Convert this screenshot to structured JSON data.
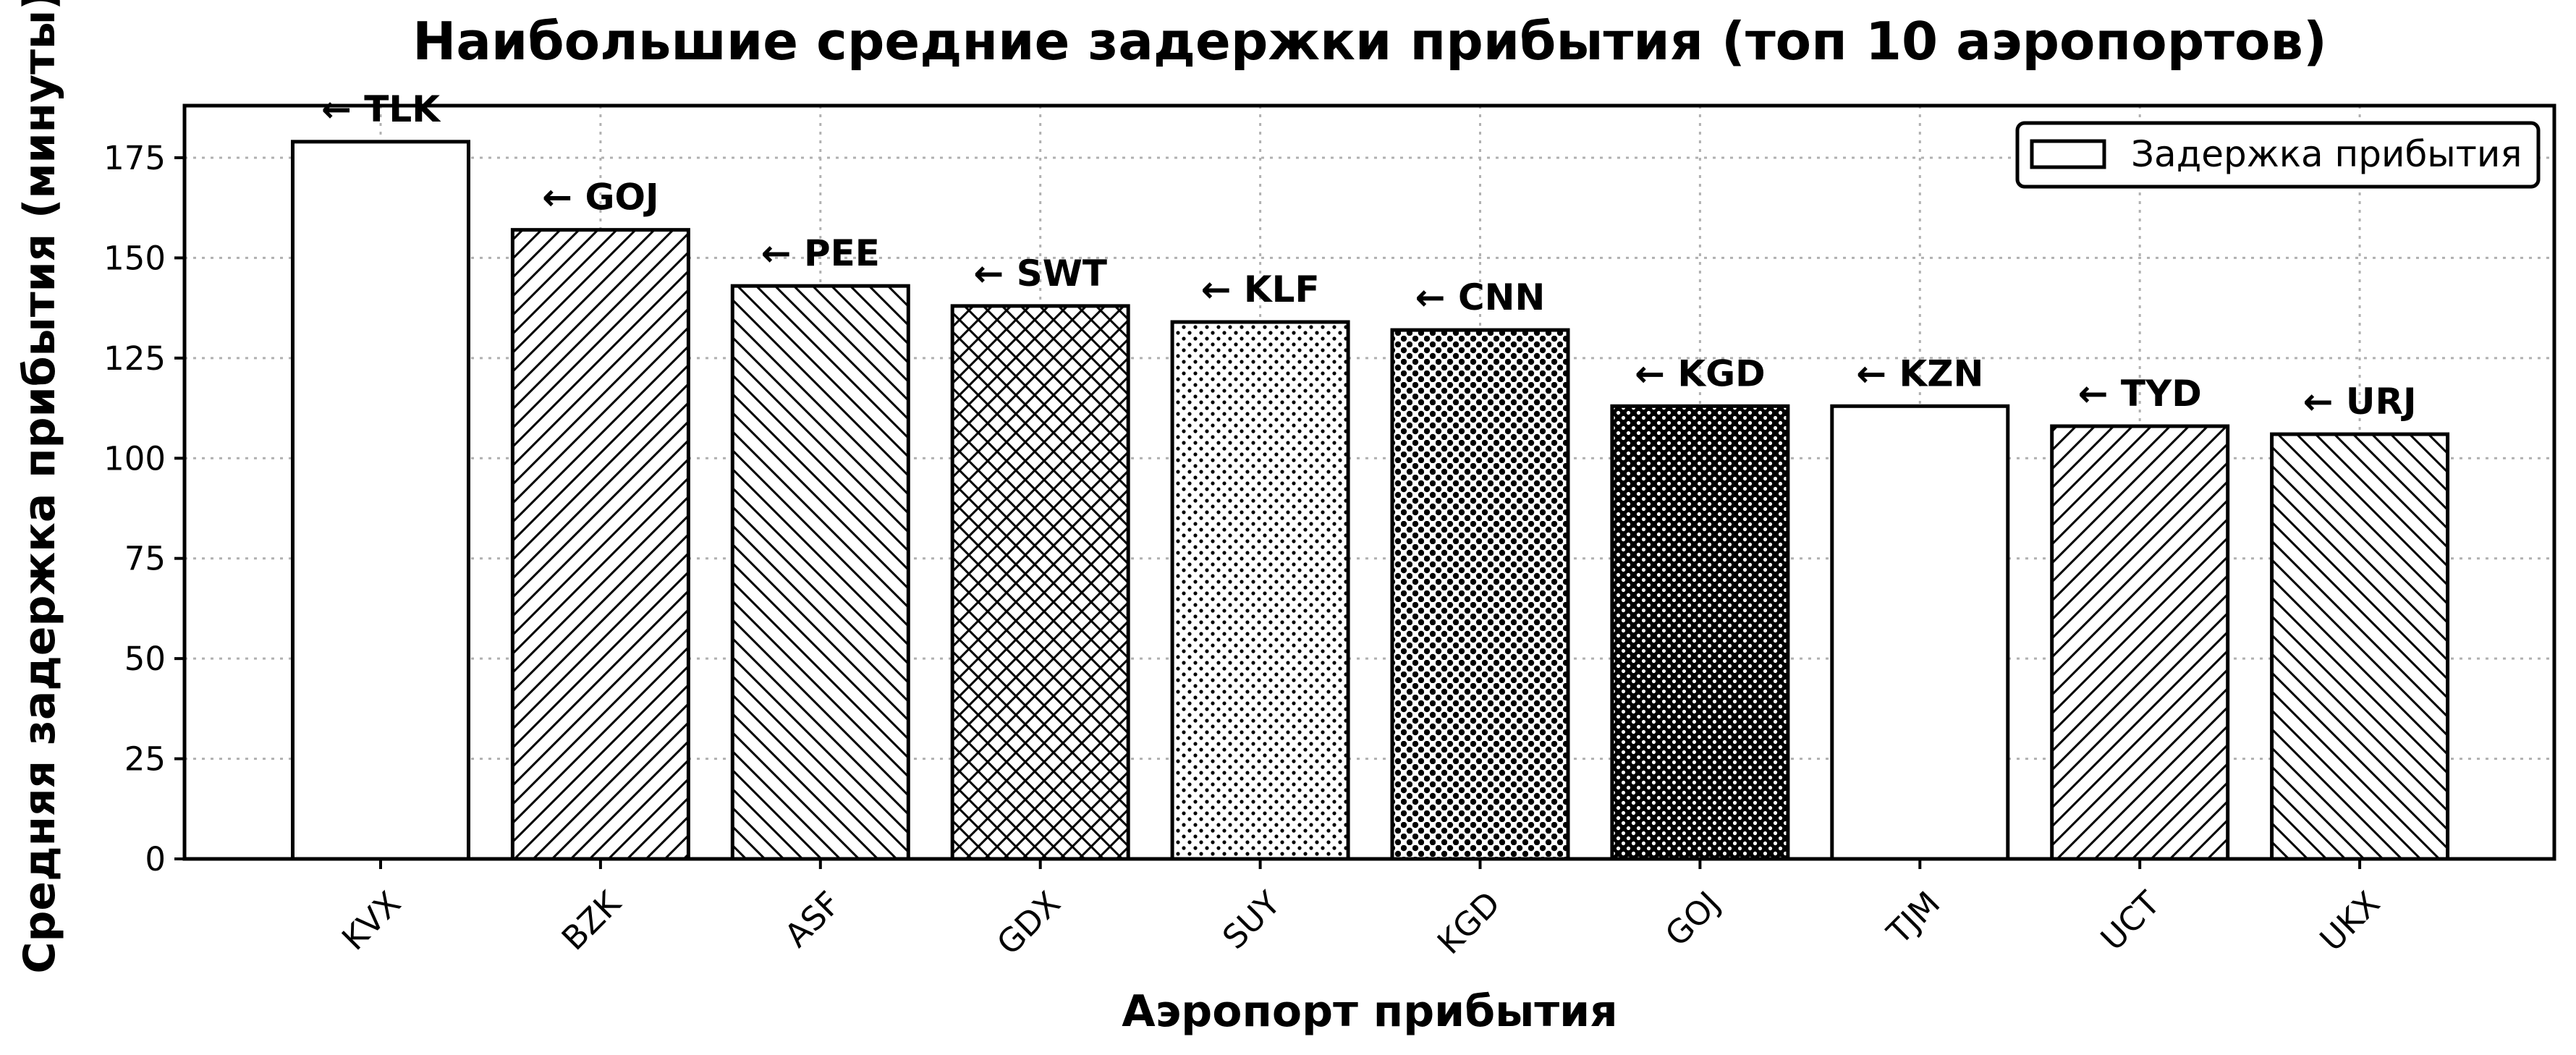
{
  "chart_data": {
    "type": "bar",
    "title": "Наибольшие средние задержки прибытия (топ 10 аэропортов)",
    "xlabel": "Аэропорт прибытия",
    "ylabel": "Средняя задержка прибытия (минуты)",
    "categories": [
      "KVX",
      "BZK",
      "ASF",
      "GDX",
      "SUY",
      "KGD",
      "GOJ",
      "TJM",
      "UCT",
      "UKX"
    ],
    "values": [
      179,
      157,
      143,
      138,
      134,
      132,
      113,
      113,
      108,
      106
    ],
    "bar_labels": [
      "← TLK",
      "← GOJ",
      "← PEE",
      "← SWT",
      "← KLF",
      "← CNN",
      "← KGD",
      "← KZN",
      "← TYD",
      "← URJ"
    ],
    "patterns": [
      "none",
      "diag-up",
      "diag-down",
      "crosshatch",
      "dots-small",
      "dots-medium",
      "dots-dense",
      "none",
      "diag-up",
      "diag-down"
    ],
    "ylim": [
      0,
      188
    ],
    "yticks": [
      0,
      25,
      50,
      75,
      100,
      125,
      150,
      175
    ],
    "grid": true,
    "legend": {
      "label": "Задержка прибытия",
      "position": "top-right"
    },
    "colors": {
      "bar_fill": "#ffffff",
      "bar_edge": "#000000",
      "grid": "#b0b0b0"
    }
  }
}
